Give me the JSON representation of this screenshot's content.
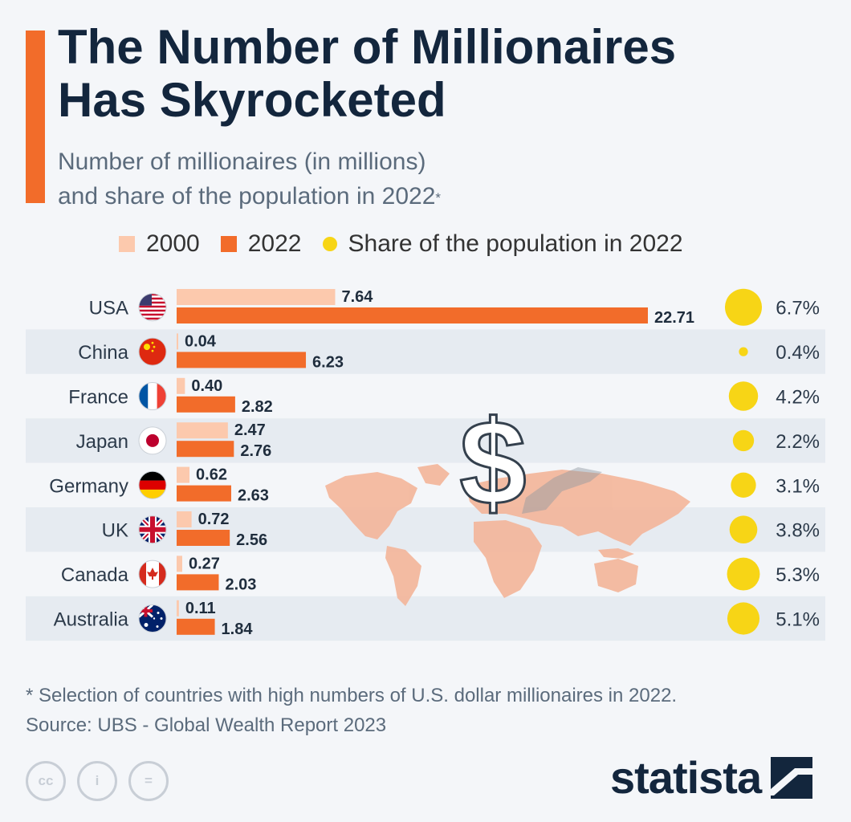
{
  "header": {
    "title_line1": "The Number of Millionaires",
    "title_line2": "Has Skyrocketed",
    "subtitle_line1": "Number of millionaires (in millions)",
    "subtitle_line2": "and share of the population in 2022",
    "subtitle_mark": "*"
  },
  "legend": {
    "s2000": "2000",
    "s2022": "2022",
    "share": "Share of the population in 2022"
  },
  "colors": {
    "bar_2000": "#fcc9ad",
    "bar_2022": "#f26c2a",
    "bubble": "#f7d516",
    "accent": "#f26c2a",
    "row_stripe": "#e6ebf1",
    "map": "#f3b89e"
  },
  "chart_data": {
    "type": "bar",
    "orientation": "horizontal",
    "categories": [
      "USA",
      "China",
      "France",
      "Japan",
      "Germany",
      "UK",
      "Canada",
      "Australia"
    ],
    "series": [
      {
        "name": "2000",
        "values": [
          7.64,
          0.04,
          0.4,
          2.47,
          0.62,
          0.72,
          0.27,
          0.11
        ]
      },
      {
        "name": "2022",
        "values": [
          22.71,
          6.23,
          2.82,
          2.76,
          2.63,
          2.56,
          2.03,
          1.84
        ]
      }
    ],
    "value_labels": {
      "2000": [
        "7.64",
        "0.04",
        "0.40",
        "2.47",
        "0.62",
        "0.72",
        "0.27",
        "0.11"
      ],
      "2022": [
        "22.71",
        "6.23",
        "2.82",
        "2.76",
        "2.63",
        "2.56",
        "2.03",
        "1.84"
      ]
    },
    "share_2022": {
      "name": "Share of the population in 2022",
      "values": [
        6.7,
        0.4,
        4.2,
        2.2,
        3.1,
        3.8,
        5.3,
        5.1
      ],
      "labels": [
        "6.7%",
        "0.4%",
        "4.2%",
        "2.2%",
        "3.1%",
        "3.8%",
        "5.3%",
        "5.1%"
      ]
    },
    "flags": [
      "usa-flag",
      "china-flag",
      "france-flag",
      "japan-flag",
      "germany-flag",
      "uk-flag",
      "canada-flag",
      "australia-flag"
    ],
    "xlim": [
      0,
      22.71
    ],
    "grid": false,
    "legend_position": "top"
  },
  "footer": {
    "note": "* Selection of countries with high numbers of U.S. dollar millionaires in 2022.",
    "source": "Source: UBS - Global Wealth Report 2023",
    "cc_labels": [
      "cc",
      "i",
      "="
    ],
    "brand": "statista"
  }
}
